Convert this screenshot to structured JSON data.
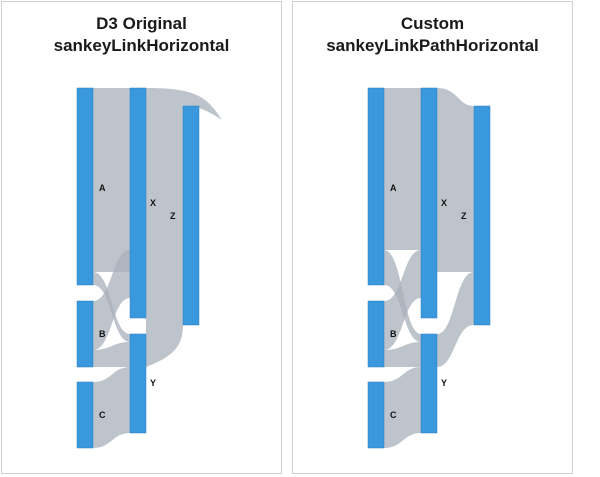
{
  "panels": [
    {
      "title_line1": "D3 Original",
      "title_line2": "sankeyLinkHorizontal"
    },
    {
      "title_line1": "Custom",
      "title_line2": "sankeyLinkPathHorizontal"
    }
  ],
  "nodes": {
    "A": "A",
    "B": "B",
    "C": "C",
    "X": "X",
    "Y": "Y",
    "Z": "Z"
  },
  "colors": {
    "node": "#3a99dc",
    "link": "#a8b0bb"
  }
}
